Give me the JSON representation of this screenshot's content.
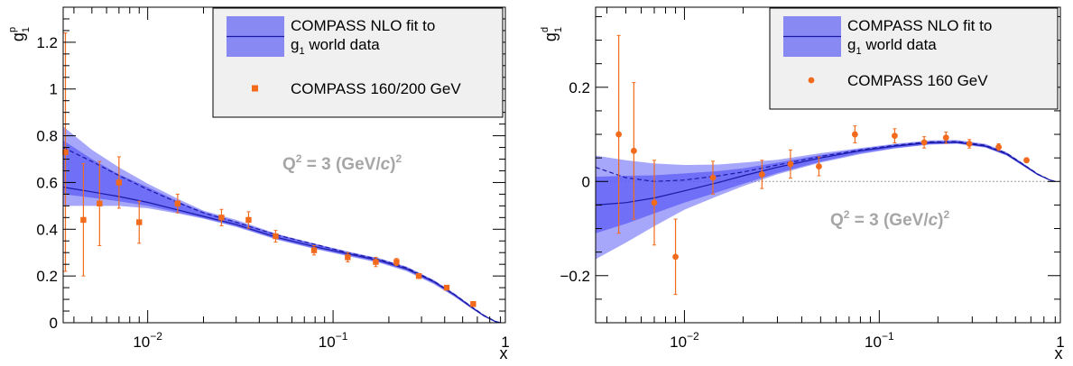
{
  "chart_data": [
    {
      "type": "scatter",
      "panel": "left",
      "ylabel": "g1p",
      "ylabel_main": "g",
      "ylabel_sup": "p",
      "ylabel_sub": "1",
      "xlabel": "x",
      "xscale": "log",
      "xlim": [
        0.0035,
        0.85
      ],
      "ylim": [
        0,
        1.35
      ],
      "yticks": [
        0,
        0.2,
        0.4,
        0.6,
        0.8,
        1,
        1.2
      ],
      "ytick_labels": [
        "0",
        "0.2",
        "0.4",
        "0.6",
        "0.8",
        "1",
        "1.2"
      ],
      "xticks": [
        0.01,
        0.1,
        1
      ],
      "xtick_labels": [
        {
          "base": "10",
          "exp": "−2"
        },
        {
          "base": "10",
          "exp": "−1"
        },
        {
          "base": "1",
          "exp": ""
        }
      ],
      "annotation": {
        "prefix": "Q",
        "sup": "2",
        "middle": " = 3 (GeV/",
        "italic": "c",
        "close": ")",
        "sup2": "2"
      },
      "legend": {
        "fit_line1": "COMPASS NLO fit to",
        "fit_line2_main": "g",
        "fit_line2_sub": "1",
        "fit_line2_rest": " world data",
        "data_label": "COMPASS 160/200 GeV",
        "placement": "top-right"
      },
      "marker": "square",
      "points": [
        {
          "x": 0.0036,
          "y": 0.73,
          "err": 0.51
        },
        {
          "x": 0.0045,
          "y": 0.44,
          "err": 0.24
        },
        {
          "x": 0.0055,
          "y": 0.51,
          "err": 0.18
        },
        {
          "x": 0.007,
          "y": 0.6,
          "err": 0.11
        },
        {
          "x": 0.009,
          "y": 0.43,
          "err": 0.09
        },
        {
          "x": 0.0145,
          "y": 0.51,
          "err": 0.04
        },
        {
          "x": 0.025,
          "y": 0.45,
          "err": 0.035
        },
        {
          "x": 0.035,
          "y": 0.44,
          "err": 0.035
        },
        {
          "x": 0.049,
          "y": 0.37,
          "err": 0.025
        },
        {
          "x": 0.079,
          "y": 0.31,
          "err": 0.02
        },
        {
          "x": 0.12,
          "y": 0.28,
          "err": 0.02
        },
        {
          "x": 0.17,
          "y": 0.26,
          "err": 0.02
        },
        {
          "x": 0.22,
          "y": 0.26,
          "err": 0.015
        },
        {
          "x": 0.29,
          "y": 0.2,
          "err": 0.01
        },
        {
          "x": 0.41,
          "y": 0.15,
          "err": 0.01
        },
        {
          "x": 0.57,
          "y": 0.08,
          "err": 0.01
        }
      ],
      "fit_curves": [
        {
          "style": "solid",
          "x": [
            0.0035,
            0.005,
            0.007,
            0.01,
            0.015,
            0.02,
            0.03,
            0.05,
            0.08,
            0.12,
            0.18,
            0.25,
            0.35,
            0.45,
            0.55,
            0.65,
            0.75,
            0.8
          ],
          "y": [
            0.58,
            0.56,
            0.54,
            0.515,
            0.48,
            0.455,
            0.42,
            0.365,
            0.325,
            0.295,
            0.265,
            0.23,
            0.175,
            0.12,
            0.07,
            0.03,
            0.005,
            0
          ]
        },
        {
          "style": "dashed",
          "x": [
            0.0035,
            0.005,
            0.007,
            0.01,
            0.015,
            0.02,
            0.03,
            0.05,
            0.08,
            0.12,
            0.18,
            0.25,
            0.35,
            0.45,
            0.55,
            0.65,
            0.75,
            0.8
          ],
          "y": [
            0.75,
            0.69,
            0.63,
            0.57,
            0.51,
            0.47,
            0.43,
            0.375,
            0.335,
            0.3,
            0.27,
            0.235,
            0.178,
            0.122,
            0.072,
            0.032,
            0.006,
            0
          ]
        }
      ],
      "bands": [
        {
          "opacity": 0.55,
          "x": [
            0.0035,
            0.005,
            0.007,
            0.01,
            0.015,
            0.02,
            0.03,
            0.05,
            0.08,
            0.12,
            0.18,
            0.25,
            0.35,
            0.45,
            0.55,
            0.65,
            0.75,
            0.8
          ],
          "lo": [
            0.5,
            0.5,
            0.5,
            0.49,
            0.465,
            0.445,
            0.41,
            0.355,
            0.315,
            0.285,
            0.255,
            0.22,
            0.165,
            0.112,
            0.064,
            0.026,
            0.003,
            0
          ],
          "hi": [
            0.84,
            0.74,
            0.665,
            0.595,
            0.525,
            0.48,
            0.44,
            0.38,
            0.338,
            0.305,
            0.275,
            0.24,
            0.183,
            0.126,
            0.075,
            0.034,
            0.008,
            0
          ]
        },
        {
          "opacity": 0.75,
          "x": [
            0.0035,
            0.005,
            0.007,
            0.01,
            0.015,
            0.02,
            0.03,
            0.05,
            0.08,
            0.12,
            0.18,
            0.25,
            0.35,
            0.45,
            0.55,
            0.65,
            0.75,
            0.8
          ],
          "lo": [
            0.55,
            0.535,
            0.52,
            0.5,
            0.47,
            0.448,
            0.413,
            0.358,
            0.318,
            0.288,
            0.258,
            0.224,
            0.169,
            0.115,
            0.066,
            0.028,
            0.004,
            0
          ],
          "hi": [
            0.78,
            0.7,
            0.635,
            0.58,
            0.515,
            0.475,
            0.433,
            0.377,
            0.336,
            0.302,
            0.272,
            0.237,
            0.18,
            0.124,
            0.074,
            0.033,
            0.007,
            0
          ]
        }
      ]
    },
    {
      "type": "scatter",
      "panel": "right",
      "ylabel": "g1d",
      "ylabel_main": "g",
      "ylabel_sup": "d",
      "ylabel_sub": "1",
      "xlabel": "x",
      "xscale": "log",
      "xlim": [
        0.0035,
        0.85
      ],
      "ylim": [
        -0.3,
        0.37
      ],
      "yticks": [
        -0.2,
        0,
        0.2
      ],
      "ytick_labels": [
        "−0.2",
        "0",
        "0.2"
      ],
      "xticks": [
        0.01,
        0.1,
        1
      ],
      "xtick_labels": [
        {
          "base": "10",
          "exp": "−2"
        },
        {
          "base": "10",
          "exp": "−1"
        },
        {
          "base": "1",
          "exp": ""
        }
      ],
      "annotation": {
        "prefix": "Q",
        "sup": "2",
        "middle": " = 3 (GeV/",
        "italic": "c",
        "close": ")",
        "sup2": "2"
      },
      "legend": {
        "fit_line1": "COMPASS NLO fit to",
        "fit_line2_main": "g",
        "fit_line2_sub": "1",
        "fit_line2_rest": " world data",
        "data_label": "COMPASS 160 GeV",
        "placement": "top-right"
      },
      "marker": "circle",
      "zero_line": true,
      "points": [
        {
          "x": 0.0046,
          "y": 0.1,
          "err": 0.21
        },
        {
          "x": 0.0055,
          "y": 0.065,
          "err": 0.145
        },
        {
          "x": 0.007,
          "y": -0.045,
          "err": 0.09
        },
        {
          "x": 0.009,
          "y": -0.16,
          "err": 0.08
        },
        {
          "x": 0.014,
          "y": 0.008,
          "err": 0.035
        },
        {
          "x": 0.025,
          "y": 0.015,
          "err": 0.03
        },
        {
          "x": 0.035,
          "y": 0.037,
          "err": 0.03
        },
        {
          "x": 0.049,
          "y": 0.032,
          "err": 0.02
        },
        {
          "x": 0.075,
          "y": 0.1,
          "err": 0.018
        },
        {
          "x": 0.12,
          "y": 0.097,
          "err": 0.015
        },
        {
          "x": 0.17,
          "y": 0.083,
          "err": 0.012
        },
        {
          "x": 0.22,
          "y": 0.093,
          "err": 0.012
        },
        {
          "x": 0.29,
          "y": 0.08,
          "err": 0.009
        },
        {
          "x": 0.41,
          "y": 0.073,
          "err": 0.007
        },
        {
          "x": 0.57,
          "y": 0.045,
          "err": 0.005
        }
      ],
      "fit_curves": [
        {
          "style": "solid",
          "x": [
            0.0035,
            0.005,
            0.007,
            0.01,
            0.015,
            0.02,
            0.03,
            0.05,
            0.08,
            0.12,
            0.18,
            0.25,
            0.35,
            0.45,
            0.55,
            0.65,
            0.75,
            0.8
          ],
          "y": [
            -0.05,
            -0.045,
            -0.035,
            -0.02,
            -0.002,
            0.012,
            0.03,
            0.05,
            0.065,
            0.075,
            0.082,
            0.083,
            0.075,
            0.058,
            0.035,
            0.015,
            0.003,
            0
          ]
        },
        {
          "style": "dashed",
          "x": [
            0.0035,
            0.005,
            0.007,
            0.01,
            0.015,
            0.02,
            0.03,
            0.05,
            0.08,
            0.12,
            0.18,
            0.25,
            0.35,
            0.45,
            0.55,
            0.65,
            0.75,
            0.8
          ],
          "y": [
            0.03,
            0.008,
            0.0,
            0.003,
            0.012,
            0.02,
            0.035,
            0.053,
            0.067,
            0.077,
            0.084,
            0.085,
            0.077,
            0.06,
            0.036,
            0.016,
            0.003,
            0
          ]
        }
      ],
      "bands": [
        {
          "opacity": 0.55,
          "x": [
            0.0035,
            0.005,
            0.007,
            0.01,
            0.015,
            0.02,
            0.03,
            0.05,
            0.08,
            0.12,
            0.18,
            0.25,
            0.35,
            0.45,
            0.55,
            0.65,
            0.75,
            0.8
          ],
          "lo": [
            -0.165,
            -0.13,
            -0.095,
            -0.06,
            -0.03,
            -0.01,
            0.015,
            0.04,
            0.058,
            0.07,
            0.078,
            0.08,
            0.072,
            0.055,
            0.032,
            0.013,
            0.002,
            0
          ],
          "hi": [
            0.055,
            0.045,
            0.038,
            0.035,
            0.036,
            0.04,
            0.046,
            0.06,
            0.071,
            0.08,
            0.087,
            0.088,
            0.08,
            0.062,
            0.038,
            0.017,
            0.004,
            0
          ]
        },
        {
          "opacity": 0.75,
          "x": [
            0.0035,
            0.005,
            0.007,
            0.01,
            0.015,
            0.02,
            0.03,
            0.05,
            0.08,
            0.12,
            0.18,
            0.25,
            0.35,
            0.45,
            0.55,
            0.65,
            0.75,
            0.8
          ],
          "lo": [
            -0.11,
            -0.09,
            -0.068,
            -0.045,
            -0.022,
            -0.005,
            0.018,
            0.042,
            0.06,
            0.071,
            0.079,
            0.081,
            0.073,
            0.056,
            0.033,
            0.014,
            0.002,
            0
          ],
          "hi": [
            0.01,
            0.012,
            0.013,
            0.017,
            0.022,
            0.028,
            0.04,
            0.056,
            0.069,
            0.078,
            0.085,
            0.086,
            0.078,
            0.061,
            0.037,
            0.016,
            0.004,
            0
          ]
        }
      ]
    }
  ],
  "colors": {
    "band": "#5c5cf5",
    "curve": "#1a1aa8",
    "points": "#f26b1d",
    "zero_line": "#9a9a9a",
    "legend_bg": "#f0f0f0",
    "annotation": "#a6a6a6"
  }
}
